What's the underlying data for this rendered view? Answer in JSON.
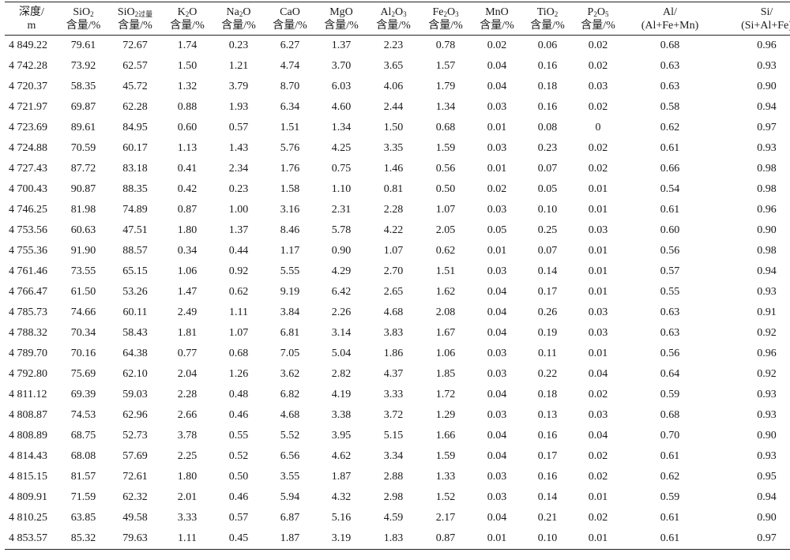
{
  "table": {
    "headers": [
      {
        "l1": "深度/",
        "l2": "m"
      },
      {
        "l1_main": "SiO",
        "l1_sub": "2",
        "l2": "含量/%"
      },
      {
        "l1_main": "SiO",
        "l1_sub": "2过量",
        "l2": "含量/%"
      },
      {
        "l1_main": "K",
        "l1_sub": "2",
        "l1_tail": "O",
        "l2": "含量/%"
      },
      {
        "l1_main": "Na",
        "l1_sub": "2",
        "l1_tail": "O",
        "l2": "含量/%"
      },
      {
        "l1": "CaO",
        "l2": "含量/%"
      },
      {
        "l1": "MgO",
        "l2": "含量/%"
      },
      {
        "l1_main": "Al",
        "l1_sub": "2",
        "l1_tail": "O",
        "l1_sub2": "3",
        "l2": "含量/%"
      },
      {
        "l1_main": "Fe",
        "l1_sub": "2",
        "l1_tail": "O",
        "l1_sub2": "3",
        "l2": "含量/%"
      },
      {
        "l1": "MnO",
        "l2": "含量/%"
      },
      {
        "l1_main": "TiO",
        "l1_sub": "2",
        "l2": "含量/%"
      },
      {
        "l1_main": "P",
        "l1_sub": "2",
        "l1_tail": "O",
        "l1_sub2": "5",
        "l2": "含量/%"
      },
      {
        "l1": "Al/",
        "l2": "(Al+Fe+Mn)"
      },
      {
        "l1": "Si/",
        "l2": "(Si+Al+Fe)"
      }
    ],
    "rows": [
      [
        "4 849.22",
        "79.61",
        "72.67",
        "1.74",
        "0.23",
        "6.27",
        "1.37",
        "2.23",
        "0.78",
        "0.02",
        "0.06",
        "0.02",
        "0.68",
        "0.96"
      ],
      [
        "4 742.28",
        "73.92",
        "62.57",
        "1.50",
        "1.21",
        "4.74",
        "3.70",
        "3.65",
        "1.57",
        "0.04",
        "0.16",
        "0.02",
        "0.63",
        "0.93"
      ],
      [
        "4 720.37",
        "58.35",
        "45.72",
        "1.32",
        "3.79",
        "8.70",
        "6.03",
        "4.06",
        "1.79",
        "0.04",
        "0.18",
        "0.03",
        "0.63",
        "0.90"
      ],
      [
        "4 721.97",
        "69.87",
        "62.28",
        "0.88",
        "1.93",
        "6.34",
        "4.60",
        "2.44",
        "1.34",
        "0.03",
        "0.16",
        "0.02",
        "0.58",
        "0.94"
      ],
      [
        "4 723.69",
        "89.61",
        "84.95",
        "0.60",
        "0.57",
        "1.51",
        "1.34",
        "1.50",
        "0.68",
        "0.01",
        "0.08",
        "0",
        "0.62",
        "0.97"
      ],
      [
        "4 724.88",
        "70.59",
        "60.17",
        "1.13",
        "1.43",
        "5.76",
        "4.25",
        "3.35",
        "1.59",
        "0.03",
        "0.23",
        "0.02",
        "0.61",
        "0.93"
      ],
      [
        "4 727.43",
        "87.72",
        "83.18",
        "0.41",
        "2.34",
        "1.76",
        "0.75",
        "1.46",
        "0.56",
        "0.01",
        "0.07",
        "0.02",
        "0.66",
        "0.98"
      ],
      [
        "4 700.43",
        "90.87",
        "88.35",
        "0.42",
        "0.23",
        "1.58",
        "1.10",
        "0.81",
        "0.50",
        "0.02",
        "0.05",
        "0.01",
        "0.54",
        "0.98"
      ],
      [
        "4 746.25",
        "81.98",
        "74.89",
        "0.87",
        "1.00",
        "3.16",
        "2.31",
        "2.28",
        "1.07",
        "0.03",
        "0.10",
        "0.01",
        "0.61",
        "0.96"
      ],
      [
        "4 753.56",
        "60.63",
        "47.51",
        "1.80",
        "1.37",
        "8.46",
        "5.78",
        "4.22",
        "2.05",
        "0.05",
        "0.25",
        "0.03",
        "0.60",
        "0.90"
      ],
      [
        "4 755.36",
        "91.90",
        "88.57",
        "0.34",
        "0.44",
        "1.17",
        "0.90",
        "1.07",
        "0.62",
        "0.01",
        "0.07",
        "0.01",
        "0.56",
        "0.98"
      ],
      [
        "4 761.46",
        "73.55",
        "65.15",
        "1.06",
        "0.92",
        "5.55",
        "4.29",
        "2.70",
        "1.51",
        "0.03",
        "0.14",
        "0.01",
        "0.57",
        "0.94"
      ],
      [
        "4 766.47",
        "61.50",
        "53.26",
        "1.47",
        "0.62",
        "9.19",
        "6.42",
        "2.65",
        "1.62",
        "0.04",
        "0.17",
        "0.01",
        "0.55",
        "0.93"
      ],
      [
        "4 785.73",
        "74.66",
        "60.11",
        "2.49",
        "1.11",
        "3.84",
        "2.26",
        "4.68",
        "2.08",
        "0.04",
        "0.26",
        "0.03",
        "0.63",
        "0.91"
      ],
      [
        "4 788.32",
        "70.34",
        "58.43",
        "1.81",
        "1.07",
        "6.81",
        "3.14",
        "3.83",
        "1.67",
        "0.04",
        "0.19",
        "0.03",
        "0.63",
        "0.92"
      ],
      [
        "4 789.70",
        "70.16",
        "64.38",
        "0.77",
        "0.68",
        "7.05",
        "5.04",
        "1.86",
        "1.06",
        "0.03",
        "0.11",
        "0.01",
        "0.56",
        "0.96"
      ],
      [
        "4 792.80",
        "75.69",
        "62.10",
        "2.04",
        "1.26",
        "3.62",
        "2.82",
        "4.37",
        "1.85",
        "0.03",
        "0.22",
        "0.04",
        "0.64",
        "0.92"
      ],
      [
        "4 811.12",
        "69.39",
        "59.03",
        "2.28",
        "0.48",
        "6.82",
        "4.19",
        "3.33",
        "1.72",
        "0.04",
        "0.18",
        "0.02",
        "0.59",
        "0.93"
      ],
      [
        "4 808.87",
        "74.53",
        "62.96",
        "2.66",
        "0.46",
        "4.68",
        "3.38",
        "3.72",
        "1.29",
        "0.03",
        "0.13",
        "0.03",
        "0.68",
        "0.93"
      ],
      [
        "4 808.89",
        "68.75",
        "52.73",
        "3.78",
        "0.55",
        "5.52",
        "3.95",
        "5.15",
        "1.66",
        "0.04",
        "0.16",
        "0.04",
        "0.70",
        "0.90"
      ],
      [
        "4 814.43",
        "68.08",
        "57.69",
        "2.25",
        "0.52",
        "6.56",
        "4.62",
        "3.34",
        "1.59",
        "0.04",
        "0.17",
        "0.02",
        "0.61",
        "0.93"
      ],
      [
        "4 815.15",
        "81.57",
        "72.61",
        "1.80",
        "0.50",
        "3.55",
        "1.87",
        "2.88",
        "1.33",
        "0.03",
        "0.16",
        "0.02",
        "0.62",
        "0.95"
      ],
      [
        "4 809.91",
        "71.59",
        "62.32",
        "2.01",
        "0.46",
        "5.94",
        "4.32",
        "2.98",
        "1.52",
        "0.03",
        "0.14",
        "0.01",
        "0.59",
        "0.94"
      ],
      [
        "4 810.25",
        "63.85",
        "49.58",
        "3.33",
        "0.57",
        "6.87",
        "5.16",
        "4.59",
        "2.17",
        "0.04",
        "0.21",
        "0.02",
        "0.61",
        "0.90"
      ],
      [
        "4 853.57",
        "85.32",
        "79.63",
        "1.11",
        "0.45",
        "1.87",
        "3.19",
        "1.83",
        "0.87",
        "0.01",
        "0.10",
        "0.01",
        "0.61",
        "0.97"
      ]
    ]
  }
}
